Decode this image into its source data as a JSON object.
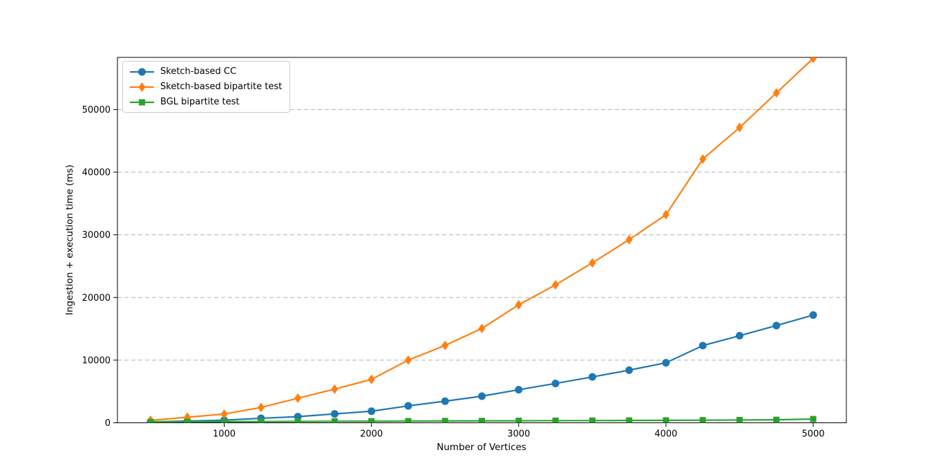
{
  "chart_data": {
    "type": "line",
    "x": [
      500,
      750,
      1000,
      1250,
      1500,
      1750,
      2000,
      2250,
      2500,
      2750,
      3000,
      3250,
      3500,
      3750,
      4000,
      4250,
      4500,
      4750,
      5000
    ],
    "series": [
      {
        "name": "Sketch-based CC",
        "color": "#1f77b4",
        "marker": "circle",
        "values": [
          150,
          280,
          420,
          720,
          980,
          1420,
          1850,
          2700,
          3450,
          4250,
          5280,
          6280,
          7320,
          8400,
          9580,
          12320,
          13900,
          15520,
          17200
        ]
      },
      {
        "name": "Sketch-based bipartite test",
        "color": "#ff7f0e",
        "marker": "diamond",
        "values": [
          400,
          880,
          1400,
          2450,
          3930,
          5370,
          6930,
          10000,
          12350,
          15060,
          18830,
          22020,
          25520,
          29230,
          33210,
          42090,
          47130,
          52650,
          58160
        ]
      },
      {
        "name": "BGL bipartite test",
        "color": "#2ca02c",
        "marker": "square",
        "values": [
          140,
          160,
          180,
          200,
          220,
          240,
          250,
          270,
          290,
          300,
          320,
          340,
          350,
          370,
          390,
          420,
          450,
          480,
          600
        ]
      }
    ],
    "title": "",
    "xlabel": "Number of Vertices",
    "ylabel": "Ingestion + execution time (ms)",
    "xticks": [
      1000,
      2000,
      3000,
      4000,
      5000
    ],
    "yticks": [
      0,
      10000,
      20000,
      30000,
      40000,
      50000
    ],
    "xlim": [
      275,
      5225
    ],
    "ylim": [
      0,
      58320
    ],
    "grid": "horizontal-dashed",
    "grid_color": "#b0b0b0",
    "spine_color": "#000000",
    "legend_position": "upper-left"
  }
}
